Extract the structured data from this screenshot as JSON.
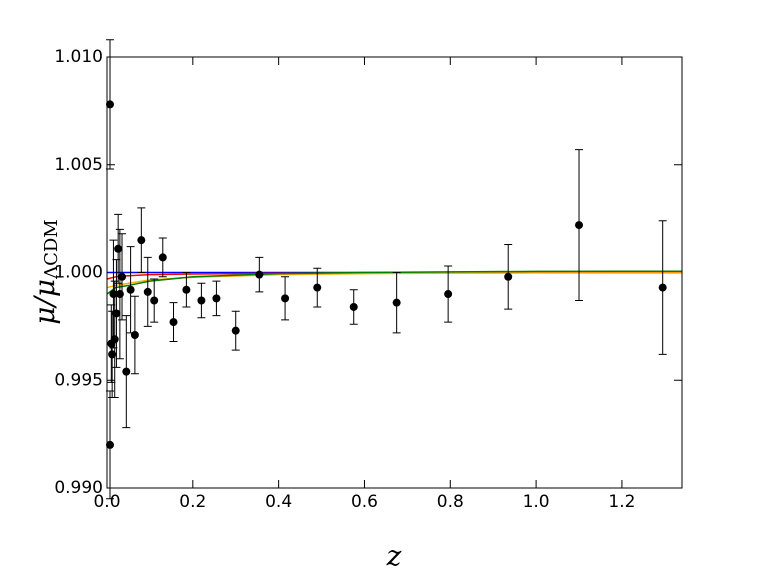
{
  "chart_data": {
    "type": "errorbar",
    "x_label": "z",
    "y_label": [
      "μ/μ",
      "ΛCDM"
    ],
    "xlim": [
      0,
      1.34
    ],
    "ylim": [
      0.99,
      1.01
    ],
    "xticks": [
      {
        "value": 0,
        "label": "0.0"
      },
      0.2,
      0.4,
      0.6,
      0.8,
      {
        "value": 1,
        "label": "1.0"
      },
      1.2
    ],
    "yticks": [
      {
        "value": 0.99,
        "label": "0.990"
      },
      0.995,
      {
        "value": 1,
        "label": "1.000"
      },
      1.005,
      {
        "value": 1.01,
        "label": "1.010"
      }
    ],
    "points": {
      "color": "#000000",
      "x": [
        0.007,
        0.007,
        0.01,
        0.012,
        0.015,
        0.018,
        0.022,
        0.026,
        0.03,
        0.035,
        0.045,
        0.055,
        0.065,
        0.08,
        0.095,
        0.11,
        0.13,
        0.155,
        0.185,
        0.22,
        0.255,
        0.3,
        0.355,
        0.415,
        0.49,
        0.575,
        0.675,
        0.795,
        0.935,
        1.1,
        1.295
      ],
      "y": [
        1.0078,
        0.992,
        0.9967,
        0.9962,
        0.999,
        0.9969,
        0.9981,
        1.0011,
        0.999,
        0.9998,
        0.9954,
        0.9992,
        0.9971,
        1.0015,
        0.9991,
        0.9987,
        1.0007,
        0.9977,
        0.9992,
        0.9987,
        0.9988,
        0.9973,
        0.9999,
        0.9988,
        0.9993,
        0.9984,
        0.9986,
        0.999,
        0.9998,
        1.0022,
        0.9993
      ],
      "yerr": [
        0.003,
        0.0025,
        0.0018,
        0.002,
        0.0025,
        0.0027,
        0.0025,
        0.0016,
        0.003,
        0.002,
        0.0026,
        0.002,
        0.0018,
        0.0015,
        0.0016,
        0.001,
        0.0009,
        0.0009,
        0.0008,
        0.0008,
        0.0008,
        0.0009,
        0.0008,
        0.001,
        0.0009,
        0.0008,
        0.0014,
        0.0013,
        0.0015,
        0.0035,
        0.0031
      ]
    },
    "series_x": [
      0,
      0.02,
      0.05,
      0.1,
      0.2,
      0.4,
      0.6,
      0.8,
      1.0,
      1.2,
      1.34
    ],
    "series": [
      {
        "color": "#0000ff",
        "values": [
          1.0,
          1.0,
          1.0,
          1.0,
          1.0,
          1.0,
          1.0,
          1.0,
          1.0,
          1.0,
          1.0
        ]
      },
      {
        "color": "#ff0000",
        "values": [
          0.9997,
          0.9998,
          0.99985,
          0.9999,
          0.99993,
          0.99996,
          0.99998,
          0.99999,
          1.0,
          1.0,
          1.0
        ]
      },
      {
        "color": "#ffaa00",
        "values": [
          0.9993,
          0.9994,
          0.9995,
          0.99965,
          0.99978,
          0.9999,
          0.99995,
          0.99997,
          0.99998,
          0.99998,
          0.99998
        ]
      },
      {
        "color": "#008000",
        "values": [
          0.999,
          0.9993,
          0.9994,
          0.9996,
          0.9998,
          0.99995,
          1.0,
          1.00003,
          1.00005,
          1.00006,
          1.00006
        ]
      }
    ]
  }
}
